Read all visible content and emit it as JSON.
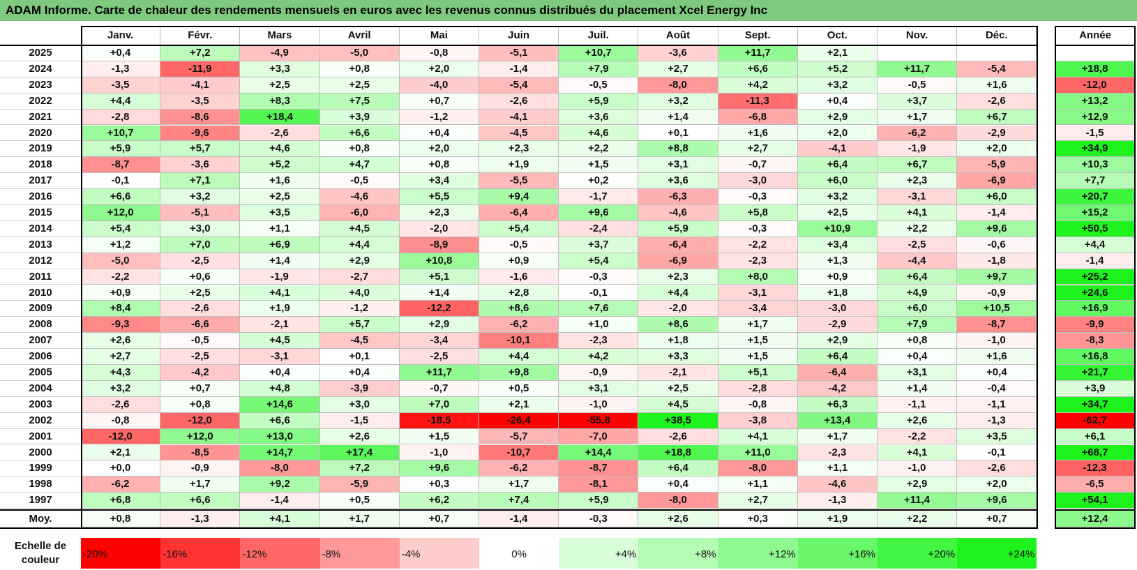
{
  "title": "ADAM Informe. Carte de chaleur des rendements mensuels en euros avec les revenus connus distribués du placement Xcel Energy Inc",
  "chart_data": {
    "type": "heatmap",
    "title": "ADAM Informe. Carte de chaleur des rendements mensuels en euros avec les revenus connus distribués du placement Xcel Energy Inc",
    "months": [
      "Janv.",
      "Févr.",
      "Mars",
      "Avril",
      "Mai",
      "Juin",
      "Juil.",
      "Août",
      "Sept.",
      "Oct.",
      "Nov.",
      "Déc."
    ],
    "annual_header": "Année",
    "rows": [
      {
        "year": "2025",
        "values": [
          0.4,
          7.2,
          -4.9,
          -5.0,
          -0.8,
          -5.1,
          10.7,
          -3.6,
          11.7,
          2.1,
          null,
          null
        ],
        "annual": null
      },
      {
        "year": "2024",
        "values": [
          -1.3,
          -11.9,
          3.3,
          0.8,
          2.0,
          -1.4,
          7.9,
          2.7,
          6.6,
          5.2,
          11.7,
          -5.4
        ],
        "annual": 18.8
      },
      {
        "year": "2023",
        "values": [
          -3.5,
          -4.1,
          2.5,
          2.5,
          -4.0,
          -5.4,
          -0.5,
          -8.0,
          4.2,
          3.2,
          -0.5,
          1.6
        ],
        "annual": -12.0
      },
      {
        "year": "2022",
        "values": [
          4.4,
          -3.5,
          8.3,
          7.5,
          0.7,
          -2.6,
          5.9,
          3.2,
          -11.3,
          0.4,
          3.7,
          -2.6
        ],
        "annual": 13.2
      },
      {
        "year": "2021",
        "values": [
          -2.8,
          -8.6,
          18.4,
          3.9,
          -1.2,
          -4.1,
          3.6,
          1.4,
          -6.8,
          2.9,
          1.7,
          6.7
        ],
        "annual": 12.9
      },
      {
        "year": "2020",
        "values": [
          10.7,
          -9.6,
          -2.6,
          6.6,
          0.4,
          -4.5,
          4.6,
          0.1,
          1.6,
          2.0,
          -6.2,
          -2.9
        ],
        "annual": -1.5
      },
      {
        "year": "2019",
        "values": [
          5.9,
          5.7,
          4.6,
          0.8,
          2.0,
          2.3,
          2.2,
          8.8,
          2.7,
          -4.1,
          -1.9,
          2.0
        ],
        "annual": 34.9
      },
      {
        "year": "2018",
        "values": [
          -8.7,
          -3.6,
          5.2,
          4.7,
          0.8,
          1.9,
          1.5,
          3.1,
          -0.7,
          6.4,
          6.7,
          -5.9
        ],
        "annual": 10.3
      },
      {
        "year": "2017",
        "values": [
          -0.1,
          7.1,
          1.6,
          -0.5,
          3.4,
          -5.5,
          0.2,
          3.6,
          -3.0,
          6.0,
          2.3,
          -6.9
        ],
        "annual": 7.7
      },
      {
        "year": "2016",
        "values": [
          6.6,
          3.2,
          2.5,
          -4.6,
          5.5,
          9.4,
          -1.7,
          -6.3,
          -0.3,
          3.2,
          -3.1,
          6.0
        ],
        "annual": 20.7
      },
      {
        "year": "2015",
        "values": [
          12.0,
          -5.1,
          3.5,
          -6.0,
          2.3,
          -6.4,
          9.6,
          -4.6,
          5.8,
          2.5,
          4.1,
          -1.4
        ],
        "annual": 15.2
      },
      {
        "year": "2014",
        "values": [
          5.4,
          3.0,
          1.1,
          4.5,
          -2.0,
          5.4,
          -2.4,
          5.9,
          -0.3,
          10.9,
          2.2,
          9.6
        ],
        "annual": 50.5
      },
      {
        "year": "2013",
        "values": [
          1.2,
          7.0,
          6.9,
          4.4,
          -8.9,
          -0.5,
          3.7,
          -6.4,
          -2.2,
          3.4,
          -2.5,
          -0.6
        ],
        "annual": 4.4
      },
      {
        "year": "2012",
        "values": [
          -5.0,
          -2.5,
          1.4,
          2.9,
          10.8,
          0.9,
          5.4,
          -6.9,
          -2.3,
          1.3,
          -4.4,
          -1.8
        ],
        "annual": -1.4
      },
      {
        "year": "2011",
        "values": [
          -2.2,
          0.6,
          -1.9,
          -2.7,
          5.1,
          -1.6,
          -0.3,
          2.3,
          8.0,
          0.9,
          6.4,
          9.7
        ],
        "annual": 25.2
      },
      {
        "year": "2010",
        "values": [
          0.9,
          2.5,
          4.1,
          4.0,
          1.4,
          2.8,
          -0.1,
          4.4,
          -3.1,
          1.8,
          4.9,
          -0.9
        ],
        "annual": 24.6
      },
      {
        "year": "2009",
        "values": [
          8.4,
          -2.6,
          1.9,
          -1.2,
          -12.2,
          8.6,
          7.6,
          -2.0,
          -3.4,
          -3.0,
          6.0,
          10.5
        ],
        "annual": 16.9
      },
      {
        "year": "2008",
        "values": [
          -9.3,
          -6.6,
          -2.1,
          5.7,
          2.9,
          -6.2,
          1.0,
          8.6,
          1.7,
          -2.9,
          7.9,
          -8.7
        ],
        "annual": -9.9
      },
      {
        "year": "2007",
        "values": [
          2.6,
          -0.5,
          4.5,
          -4.5,
          -3.4,
          -10.1,
          -2.3,
          1.8,
          1.5,
          2.9,
          0.8,
          -1.0
        ],
        "annual": -8.3
      },
      {
        "year": "2006",
        "values": [
          2.7,
          -2.5,
          -3.1,
          0.1,
          -2.5,
          4.4,
          4.2,
          3.3,
          1.5,
          6.4,
          0.4,
          1.6
        ],
        "annual": 16.8
      },
      {
        "year": "2005",
        "values": [
          4.3,
          -4.2,
          0.4,
          0.4,
          11.7,
          9.8,
          -0.9,
          -2.1,
          5.1,
          -6.4,
          3.1,
          0.4
        ],
        "annual": 21.7
      },
      {
        "year": "2004",
        "values": [
          3.2,
          0.7,
          4.8,
          -3.9,
          -0.7,
          0.5,
          3.1,
          2.5,
          -2.8,
          -4.2,
          1.4,
          -0.4
        ],
        "annual": 3.9
      },
      {
        "year": "2003",
        "values": [
          -2.6,
          0.8,
          14.6,
          3.0,
          7.0,
          2.1,
          -1.0,
          4.5,
          -0.8,
          6.3,
          -1.1,
          -1.1
        ],
        "annual": 34.7
      },
      {
        "year": "2002",
        "values": [
          -0.8,
          -12.0,
          6.6,
          -1.5,
          -18.5,
          -26.4,
          -55.8,
          38.5,
          -3.8,
          13.4,
          2.6,
          -1.3
        ],
        "annual": -62.7
      },
      {
        "year": "2001",
        "values": [
          -12.0,
          12.0,
          13.0,
          2.6,
          1.5,
          -5.7,
          -7.0,
          -2.6,
          4.1,
          1.7,
          -2.2,
          3.5
        ],
        "annual": 6.1
      },
      {
        "year": "2000",
        "values": [
          2.1,
          -8.5,
          14.7,
          17.4,
          -1.0,
          -10.7,
          14.4,
          18.8,
          11.0,
          -2.3,
          4.1,
          -0.1
        ],
        "annual": 68.7
      },
      {
        "year": "1999",
        "values": [
          0.0,
          -0.9,
          -8.0,
          7.2,
          9.6,
          -6.2,
          -8.7,
          6.4,
          -8.0,
          1.1,
          -1.0,
          -2.6
        ],
        "annual": -12.3
      },
      {
        "year": "1998",
        "values": [
          -6.2,
          1.7,
          9.2,
          -5.9,
          0.3,
          1.7,
          -8.1,
          0.4,
          1.1,
          -4.6,
          2.9,
          2.0
        ],
        "annual": -6.5
      },
      {
        "year": "1997",
        "values": [
          6.8,
          6.6,
          -1.4,
          0.5,
          6.2,
          7.4,
          5.9,
          -8.0,
          2.7,
          -1.3,
          11.4,
          9.6
        ],
        "annual": 54.1
      }
    ],
    "average": {
      "label": "Moy.",
      "values": [
        0.8,
        -1.3,
        4.1,
        1.7,
        0.7,
        -1.4,
        -0.3,
        2.6,
        0.3,
        1.9,
        2.2,
        0.7
      ],
      "annual": 12.4
    },
    "color_scale": {
      "label": "Echelle de couleur",
      "stops": [
        {
          "label": "-20%",
          "value": -20,
          "color": "#ff0000"
        },
        {
          "label": "-16%",
          "value": -16,
          "color": "#ff3333"
        },
        {
          "label": "-12%",
          "value": -12,
          "color": "#ff6666"
        },
        {
          "label": "-8%",
          "value": -8,
          "color": "#ff9999"
        },
        {
          "label": "-4%",
          "value": -4,
          "color": "#ffcccc"
        },
        {
          "label": "0%",
          "value": 0,
          "color": "#ffffff"
        },
        {
          "label": "+4%",
          "value": 4,
          "color": "#d9fdd9"
        },
        {
          "label": "+8%",
          "value": 8,
          "color": "#b4fbb4"
        },
        {
          "label": "+12%",
          "value": 12,
          "color": "#8ef98e"
        },
        {
          "label": "+16%",
          "value": 16,
          "color": "#69f769"
        },
        {
          "label": "+20%",
          "value": 20,
          "color": "#43f543"
        },
        {
          "label": "+24%",
          "value": 24,
          "color": "#1ef31e"
        }
      ]
    }
  }
}
